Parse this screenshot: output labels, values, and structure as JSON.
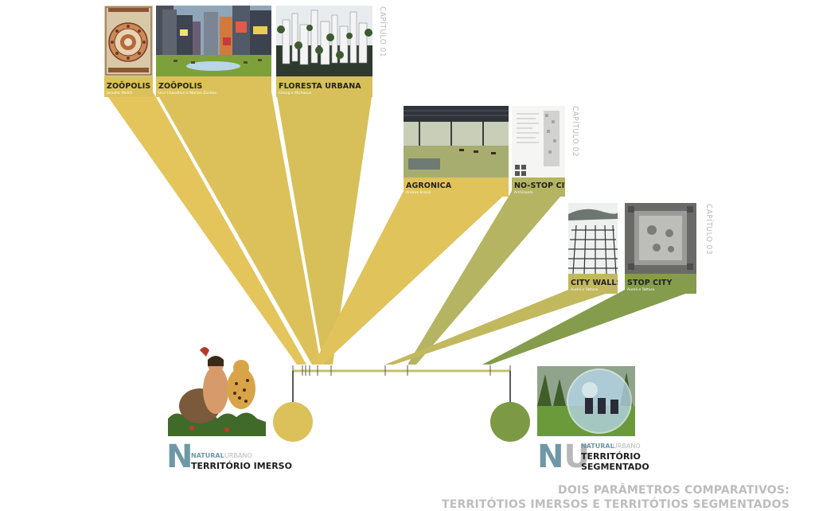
{
  "colors": {
    "yellow": "#dcc15a",
    "olive": "#b5b462",
    "green": "#7c9a45",
    "teal": "#6f98a6",
    "gray_text": "#bdbdbd"
  },
  "chapters": [
    {
      "label": "CAPÍTULO 01"
    },
    {
      "label": "CAPÍTULO 02"
    },
    {
      "label": "CAPÍTULO 03"
    }
  ],
  "cards": [
    {
      "title": "ZOÖPOLIS",
      "author": "Jennifer Wolch",
      "image": "mandala"
    },
    {
      "title": "ZOÖPOLIS",
      "author": "Urvi Chaudhuri e Marion Zacheo",
      "image": "times-square-meadow"
    },
    {
      "title": "FLORESTA URBANA",
      "author": "Chang e Michaeus",
      "image": "city-towers"
    },
    {
      "title": "AGRONICA",
      "author": "Andrea Branzi",
      "image": "greenhouse-field"
    },
    {
      "title": "NO-STOP CITY",
      "author": "Archizoom",
      "image": "city-plan"
    },
    {
      "title": "CITY WALLS",
      "author": "Aureli e Tattara",
      "image": "walls-grid"
    },
    {
      "title": "STOP CITY",
      "author": "Aureli e Tattara",
      "image": "square-plan"
    }
  ],
  "left_pole": {
    "letter": "N",
    "natural": "NATURAL",
    "urbano": "URBANO",
    "title": "TERRITÓRIO IMERSO",
    "image": "tarzan-illustration"
  },
  "right_pole": {
    "letters": "NU",
    "natural": "NATURAL",
    "sep": ".",
    "urbano": "URBANO",
    "title_line1": "TERRITÓRIO",
    "title_line2": "SEGMENTADO",
    "image": "bubble-sphere"
  },
  "footer": {
    "line1": "DOIS PARÂMETROS COMPARATIVOS:",
    "line2": "TERRITÓTIOS IMERSOS E TERRITÓTIOS SEGMENTADOS"
  }
}
